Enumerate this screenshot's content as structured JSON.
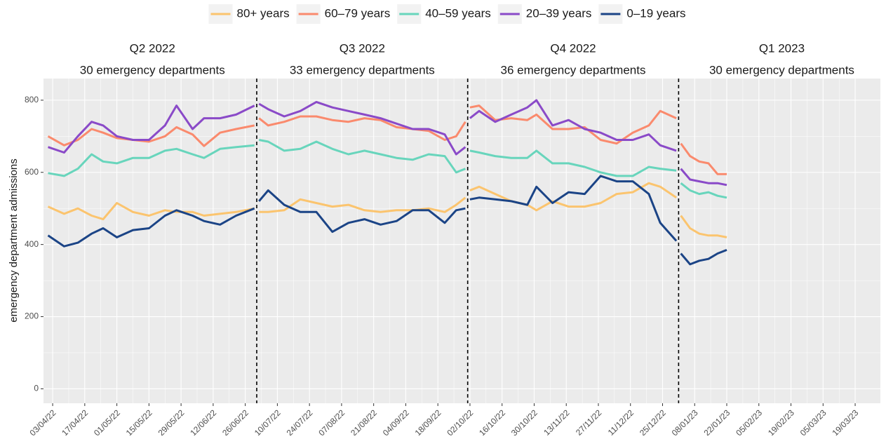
{
  "chart_data": {
    "type": "line",
    "y_label": "emergency department admissions",
    "ylim": [
      -40,
      860
    ],
    "yticks": [
      0,
      200,
      400,
      600,
      800
    ],
    "xlim": [
      "30/03/22",
      "30/03/23"
    ],
    "xticks": [
      "03/04/22",
      "17/04/22",
      "01/05/22",
      "15/05/22",
      "29/05/22",
      "12/06/22",
      "26/06/22",
      "10/07/22",
      "24/07/22",
      "07/08/22",
      "21/08/22",
      "04/09/22",
      "18/09/22",
      "02/10/22",
      "16/10/22",
      "30/10/22",
      "13/11/22",
      "27/11/22",
      "11/12/22",
      "25/12/22",
      "08/01/23",
      "22/01/23",
      "05/02/23",
      "19/02/23",
      "05/03/23",
      "19/03/23"
    ],
    "grid": true,
    "legend": "top",
    "panels": [
      {
        "title": "Q2 2022",
        "subtitle": "30 emergency departments",
        "start": "01/04/22",
        "end": "30/06/22"
      },
      {
        "title": "Q3 2022",
        "subtitle": "33 emergency departments",
        "start": "01/07/22",
        "end": "30/09/22"
      },
      {
        "title": "Q4 2022",
        "subtitle": "36 emergency departments",
        "start": "01/10/22",
        "end": "31/12/22"
      },
      {
        "title": "Q1 2023",
        "subtitle": "30 emergency departments",
        "start": "01/01/23",
        "end": "31/03/23"
      }
    ],
    "x": [
      "01/04/22",
      "08/04/22",
      "14/04/22",
      "20/04/22",
      "25/04/22",
      "01/05/22",
      "08/05/22",
      "15/05/22",
      "22/05/22",
      "27/05/22",
      "03/06/22",
      "08/06/22",
      "15/06/22",
      "22/06/22",
      "30/06/22",
      "01/07/22",
      "02/07/22",
      "06/07/22",
      "13/07/22",
      "20/07/22",
      "27/07/22",
      "03/08/22",
      "10/08/22",
      "17/08/22",
      "24/08/22",
      "31/08/22",
      "07/09/22",
      "14/09/22",
      "21/09/22",
      "26/09/22",
      "30/09/22",
      "01/10/22",
      "02/10/22",
      "06/10/22",
      "13/10/22",
      "20/10/22",
      "27/10/22",
      "31/10/22",
      "07/11/22",
      "14/11/22",
      "21/11/22",
      "28/11/22",
      "05/12/22",
      "12/12/22",
      "19/12/22",
      "24/12/22",
      "31/12/22",
      "01/01/23",
      "02/01/23",
      "06/01/23",
      "10/01/23",
      "14/01/23",
      "18/01/23",
      "22/01/23"
    ],
    "series": [
      {
        "name": "80+ years",
        "color": "#fbc46e",
        "values": [
          505,
          485,
          500,
          480,
          470,
          515,
          490,
          480,
          495,
          490,
          490,
          480,
          485,
          490,
          500,
          null,
          490,
          490,
          495,
          525,
          515,
          505,
          510,
          495,
          490,
          495,
          495,
          500,
          490,
          510,
          530,
          null,
          550,
          560,
          540,
          520,
          510,
          495,
          520,
          505,
          505,
          515,
          540,
          545,
          570,
          560,
          530,
          null,
          480,
          445,
          430,
          425,
          425,
          420
        ]
      },
      {
        "name": "60–79 years",
        "color": "#fa8a6d",
        "values": [
          700,
          675,
          690,
          720,
          710,
          695,
          690,
          685,
          700,
          725,
          705,
          673,
          710,
          720,
          730,
          null,
          750,
          730,
          740,
          755,
          755,
          745,
          740,
          750,
          745,
          725,
          720,
          715,
          690,
          700,
          740,
          null,
          780,
          785,
          745,
          750,
          745,
          760,
          720,
          720,
          725,
          690,
          680,
          710,
          730,
          770,
          750,
          null,
          680,
          645,
          630,
          625,
          595,
          595
        ]
      },
      {
        "name": "40–59 years",
        "color": "#68d5bc",
        "values": [
          598,
          590,
          610,
          650,
          630,
          625,
          640,
          640,
          660,
          665,
          650,
          640,
          665,
          670,
          675,
          null,
          690,
          685,
          660,
          665,
          685,
          665,
          650,
          660,
          650,
          640,
          635,
          650,
          645,
          600,
          610,
          null,
          660,
          655,
          645,
          640,
          640,
          660,
          625,
          625,
          615,
          600,
          590,
          590,
          615,
          610,
          605,
          null,
          570,
          550,
          540,
          545,
          535,
          530
        ]
      },
      {
        "name": "20–39 years",
        "color": "#8a4ac8",
        "values": [
          670,
          655,
          700,
          740,
          730,
          700,
          690,
          690,
          730,
          785,
          720,
          750,
          750,
          760,
          785,
          null,
          790,
          775,
          755,
          770,
          795,
          780,
          770,
          760,
          750,
          735,
          720,
          720,
          705,
          650,
          670,
          null,
          750,
          770,
          740,
          760,
          780,
          800,
          730,
          745,
          720,
          710,
          690,
          690,
          705,
          675,
          660,
          null,
          610,
          580,
          575,
          570,
          570,
          565
        ]
      },
      {
        "name": "0–19 years",
        "color": "#1b4486",
        "values": [
          425,
          395,
          405,
          430,
          445,
          420,
          440,
          445,
          480,
          495,
          480,
          465,
          455,
          480,
          500,
          null,
          520,
          550,
          510,
          490,
          490,
          435,
          460,
          470,
          455,
          465,
          495,
          495,
          460,
          495,
          500,
          null,
          525,
          530,
          525,
          520,
          510,
          560,
          515,
          545,
          540,
          590,
          575,
          575,
          540,
          460,
          410,
          null,
          375,
          345,
          355,
          360,
          375,
          385
        ]
      }
    ]
  }
}
